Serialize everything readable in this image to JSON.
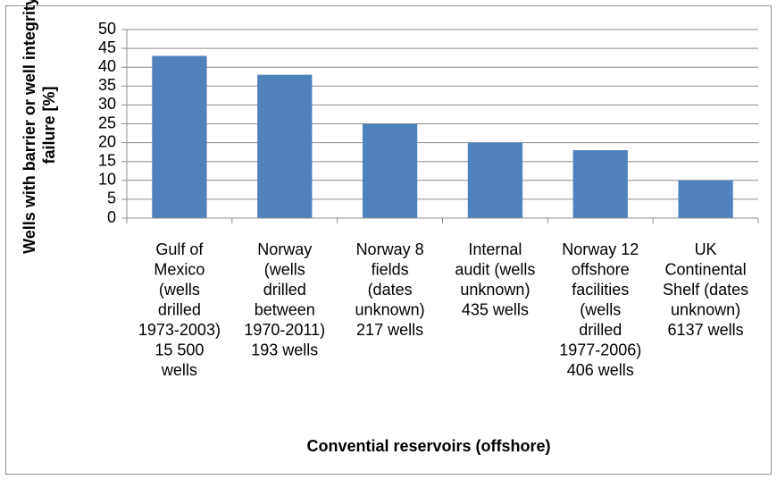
{
  "chart_data": {
    "type": "bar",
    "y_label": [
      "Wells with barrier or well integrity",
      "failure [%]"
    ],
    "x_label": "Convential reservoirs (offshore)",
    "categories": [
      [
        "Gulf of",
        "Mexico",
        "(wells",
        "drilled",
        "1973-2003)",
        "15 500",
        "wells"
      ],
      [
        "Norway",
        "(wells",
        "drilled",
        "between",
        "1970-2011)",
        "193 wells"
      ],
      [
        "Norway 8",
        "fields",
        "(dates",
        "unknown)",
        "217 wells"
      ],
      [
        "Internal",
        "audit (wells",
        "unknown)",
        "435 wells"
      ],
      [
        "Norway 12",
        "offshore",
        "facilities",
        "(wells",
        "drilled",
        "1977-2006)",
        "406 wells"
      ],
      [
        "UK",
        "Continental",
        "Shelf (dates",
        "unknown)",
        "6137 wells"
      ]
    ],
    "values": [
      43,
      38,
      25,
      20,
      18,
      10
    ],
    "color": "#4f81bd",
    "ylim": [
      0,
      50
    ],
    "yticks": [
      0,
      5,
      10,
      15,
      20,
      25,
      30,
      35,
      40,
      45,
      50
    ],
    "grid": true
  }
}
